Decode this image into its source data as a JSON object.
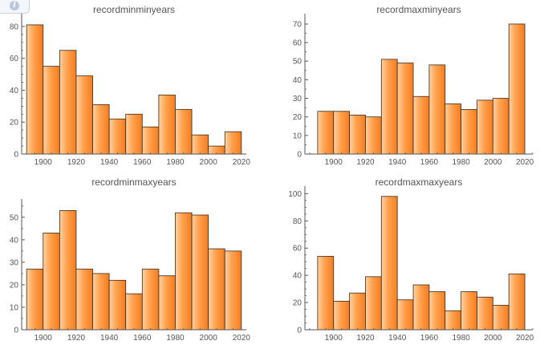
{
  "colors": {
    "bar_light": "#ffd2a2",
    "bar_mid": "#ffa04d",
    "bar_dark": "#f57d1f",
    "bar_edge": "#3c2a1a",
    "axis": "#555555",
    "label": "#555555",
    "title": "#555555"
  },
  "info_icon": "info-icon",
  "chart_data": [
    {
      "type": "bar",
      "title": "recordminminyears",
      "bin_start": 1890,
      "bin_width": 10,
      "values": [
        81,
        55,
        65,
        49,
        31,
        22,
        25,
        17,
        37,
        28,
        12,
        5,
        14
      ],
      "xlim": [
        1887,
        2023
      ],
      "ylim": [
        0,
        85
      ],
      "x_ticks": [
        "1900",
        "1920",
        "1940",
        "1960",
        "1980",
        "2000",
        "2020"
      ],
      "y_ticks": [
        "0",
        "20",
        "40",
        "60",
        "80"
      ]
    },
    {
      "type": "bar",
      "title": "recordmaxminyears",
      "bin_start": 1890,
      "bin_width": 10,
      "values": [
        23,
        23,
        21,
        20,
        51,
        49,
        31,
        48,
        27,
        24,
        29,
        30,
        70
      ],
      "xlim": [
        1882,
        2025
      ],
      "ylim": [
        0,
        73
      ],
      "x_ticks": [
        "1900",
        "1920",
        "1940",
        "1960",
        "1980",
        "2000",
        "2020"
      ],
      "y_ticks": [
        "0",
        "10",
        "20",
        "30",
        "40",
        "50",
        "60",
        "70"
      ]
    },
    {
      "type": "bar",
      "title": "recordminmaxyears",
      "bin_start": 1890,
      "bin_width": 10,
      "values": [
        27,
        43,
        53,
        27,
        25,
        22,
        16,
        27,
        24,
        52,
        51,
        36,
        35
      ],
      "xlim": [
        1887,
        2023
      ],
      "ylim": [
        0,
        56
      ],
      "x_ticks": [
        "1900",
        "1920",
        "1940",
        "1960",
        "1980",
        "2000",
        "2020"
      ],
      "y_ticks": [
        "0",
        "10",
        "20",
        "30",
        "40",
        "50"
      ]
    },
    {
      "type": "bar",
      "title": "recordmaxmaxyears",
      "bin_start": 1890,
      "bin_width": 10,
      "values": [
        54,
        21,
        27,
        39,
        98,
        22,
        33,
        28,
        14,
        28,
        24,
        18,
        41
      ],
      "xlim": [
        1882,
        2025
      ],
      "ylim": [
        0,
        102
      ],
      "x_ticks": [
        "1900",
        "1920",
        "1940",
        "1960",
        "1980",
        "2000",
        "2020"
      ],
      "y_ticks": [
        "0",
        "20",
        "40",
        "60",
        "80",
        "100"
      ]
    }
  ]
}
